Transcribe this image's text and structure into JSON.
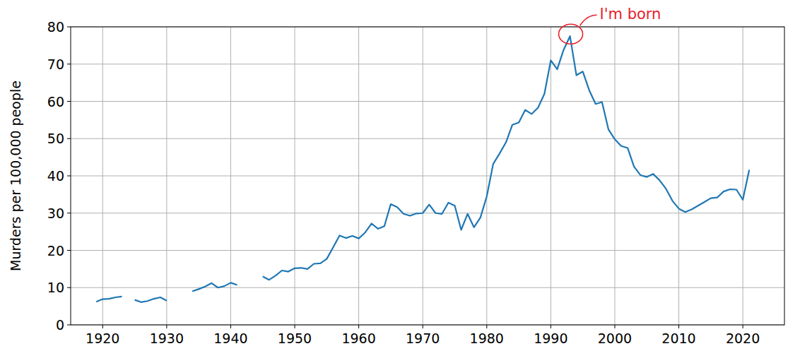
{
  "chart_data": {
    "type": "line",
    "y_label": "Murders per 100,000 people",
    "x": [
      1919,
      1920,
      1921,
      1922,
      1923,
      1924,
      1925,
      1926,
      1927,
      1928,
      1929,
      1930,
      1931,
      1932,
      1933,
      1934,
      1935,
      1936,
      1937,
      1938,
      1939,
      1940,
      1941,
      1942,
      1943,
      1944,
      1945,
      1946,
      1947,
      1948,
      1949,
      1950,
      1951,
      1952,
      1953,
      1954,
      1955,
      1956,
      1957,
      1958,
      1959,
      1960,
      1961,
      1962,
      1963,
      1964,
      1965,
      1966,
      1967,
      1968,
      1969,
      1970,
      1971,
      1972,
      1973,
      1974,
      1975,
      1976,
      1977,
      1978,
      1979,
      1980,
      1981,
      1982,
      1983,
      1984,
      1985,
      1986,
      1987,
      1988,
      1989,
      1990,
      1991,
      1992,
      1993,
      1994,
      1995,
      1996,
      1997,
      1998,
      1999,
      2000,
      2001,
      2002,
      2003,
      2004,
      2005,
      2006,
      2007,
      2008,
      2009,
      2010,
      2011,
      2012,
      2013,
      2014,
      2015,
      2016,
      2017,
      2018,
      2019,
      2020,
      2021
    ],
    "values": [
      6.2,
      6.9,
      7.0,
      7.4,
      7.6,
      null,
      6.7,
      6.1,
      6.4,
      7.0,
      7.4,
      6.5,
      null,
      null,
      null,
      9.0,
      9.6,
      10.3,
      11.2,
      10.0,
      10.4,
      11.3,
      10.7,
      null,
      null,
      null,
      13.0,
      12.1,
      13.2,
      14.6,
      14.3,
      15.2,
      15.3,
      15.0,
      16.4,
      16.5,
      17.7,
      20.8,
      24.0,
      23.3,
      23.9,
      23.2,
      24.8,
      27.2,
      25.8,
      26.5,
      32.4,
      31.6,
      29.8,
      29.3,
      29.9,
      30.0,
      32.3,
      30.0,
      29.8,
      32.8,
      32.0,
      25.5,
      29.8,
      26.2,
      28.8,
      34.5,
      43.2,
      46.0,
      49.0,
      53.7,
      54.3,
      57.7,
      56.6,
      58.3,
      62.0,
      71.0,
      68.6,
      73.8,
      77.5,
      67.0,
      68.0,
      63.0,
      59.3,
      59.8,
      52.5,
      49.8,
      48.0,
      47.5,
      42.5,
      40.2,
      39.7,
      40.5,
      38.8,
      36.5,
      33.3,
      31.2,
      30.3,
      31.0,
      32.0,
      33.0,
      34.0,
      34.2,
      35.8,
      36.4,
      36.3,
      33.6,
      41.6
    ],
    "color": "#1f77b4",
    "xlim": [
      1915,
      2026.5
    ],
    "xticks": [
      1920,
      1930,
      1940,
      1950,
      1960,
      1970,
      1980,
      1990,
      2000,
      2010,
      2020
    ],
    "ylim": [
      0,
      80
    ],
    "yticks": [
      0,
      10,
      20,
      30,
      40,
      50,
      60,
      70,
      80
    ],
    "grid": true,
    "annotations": [
      {
        "text": "I'm born",
        "x": 1993,
        "y": 77.5,
        "color": "#e8202a"
      }
    ]
  }
}
